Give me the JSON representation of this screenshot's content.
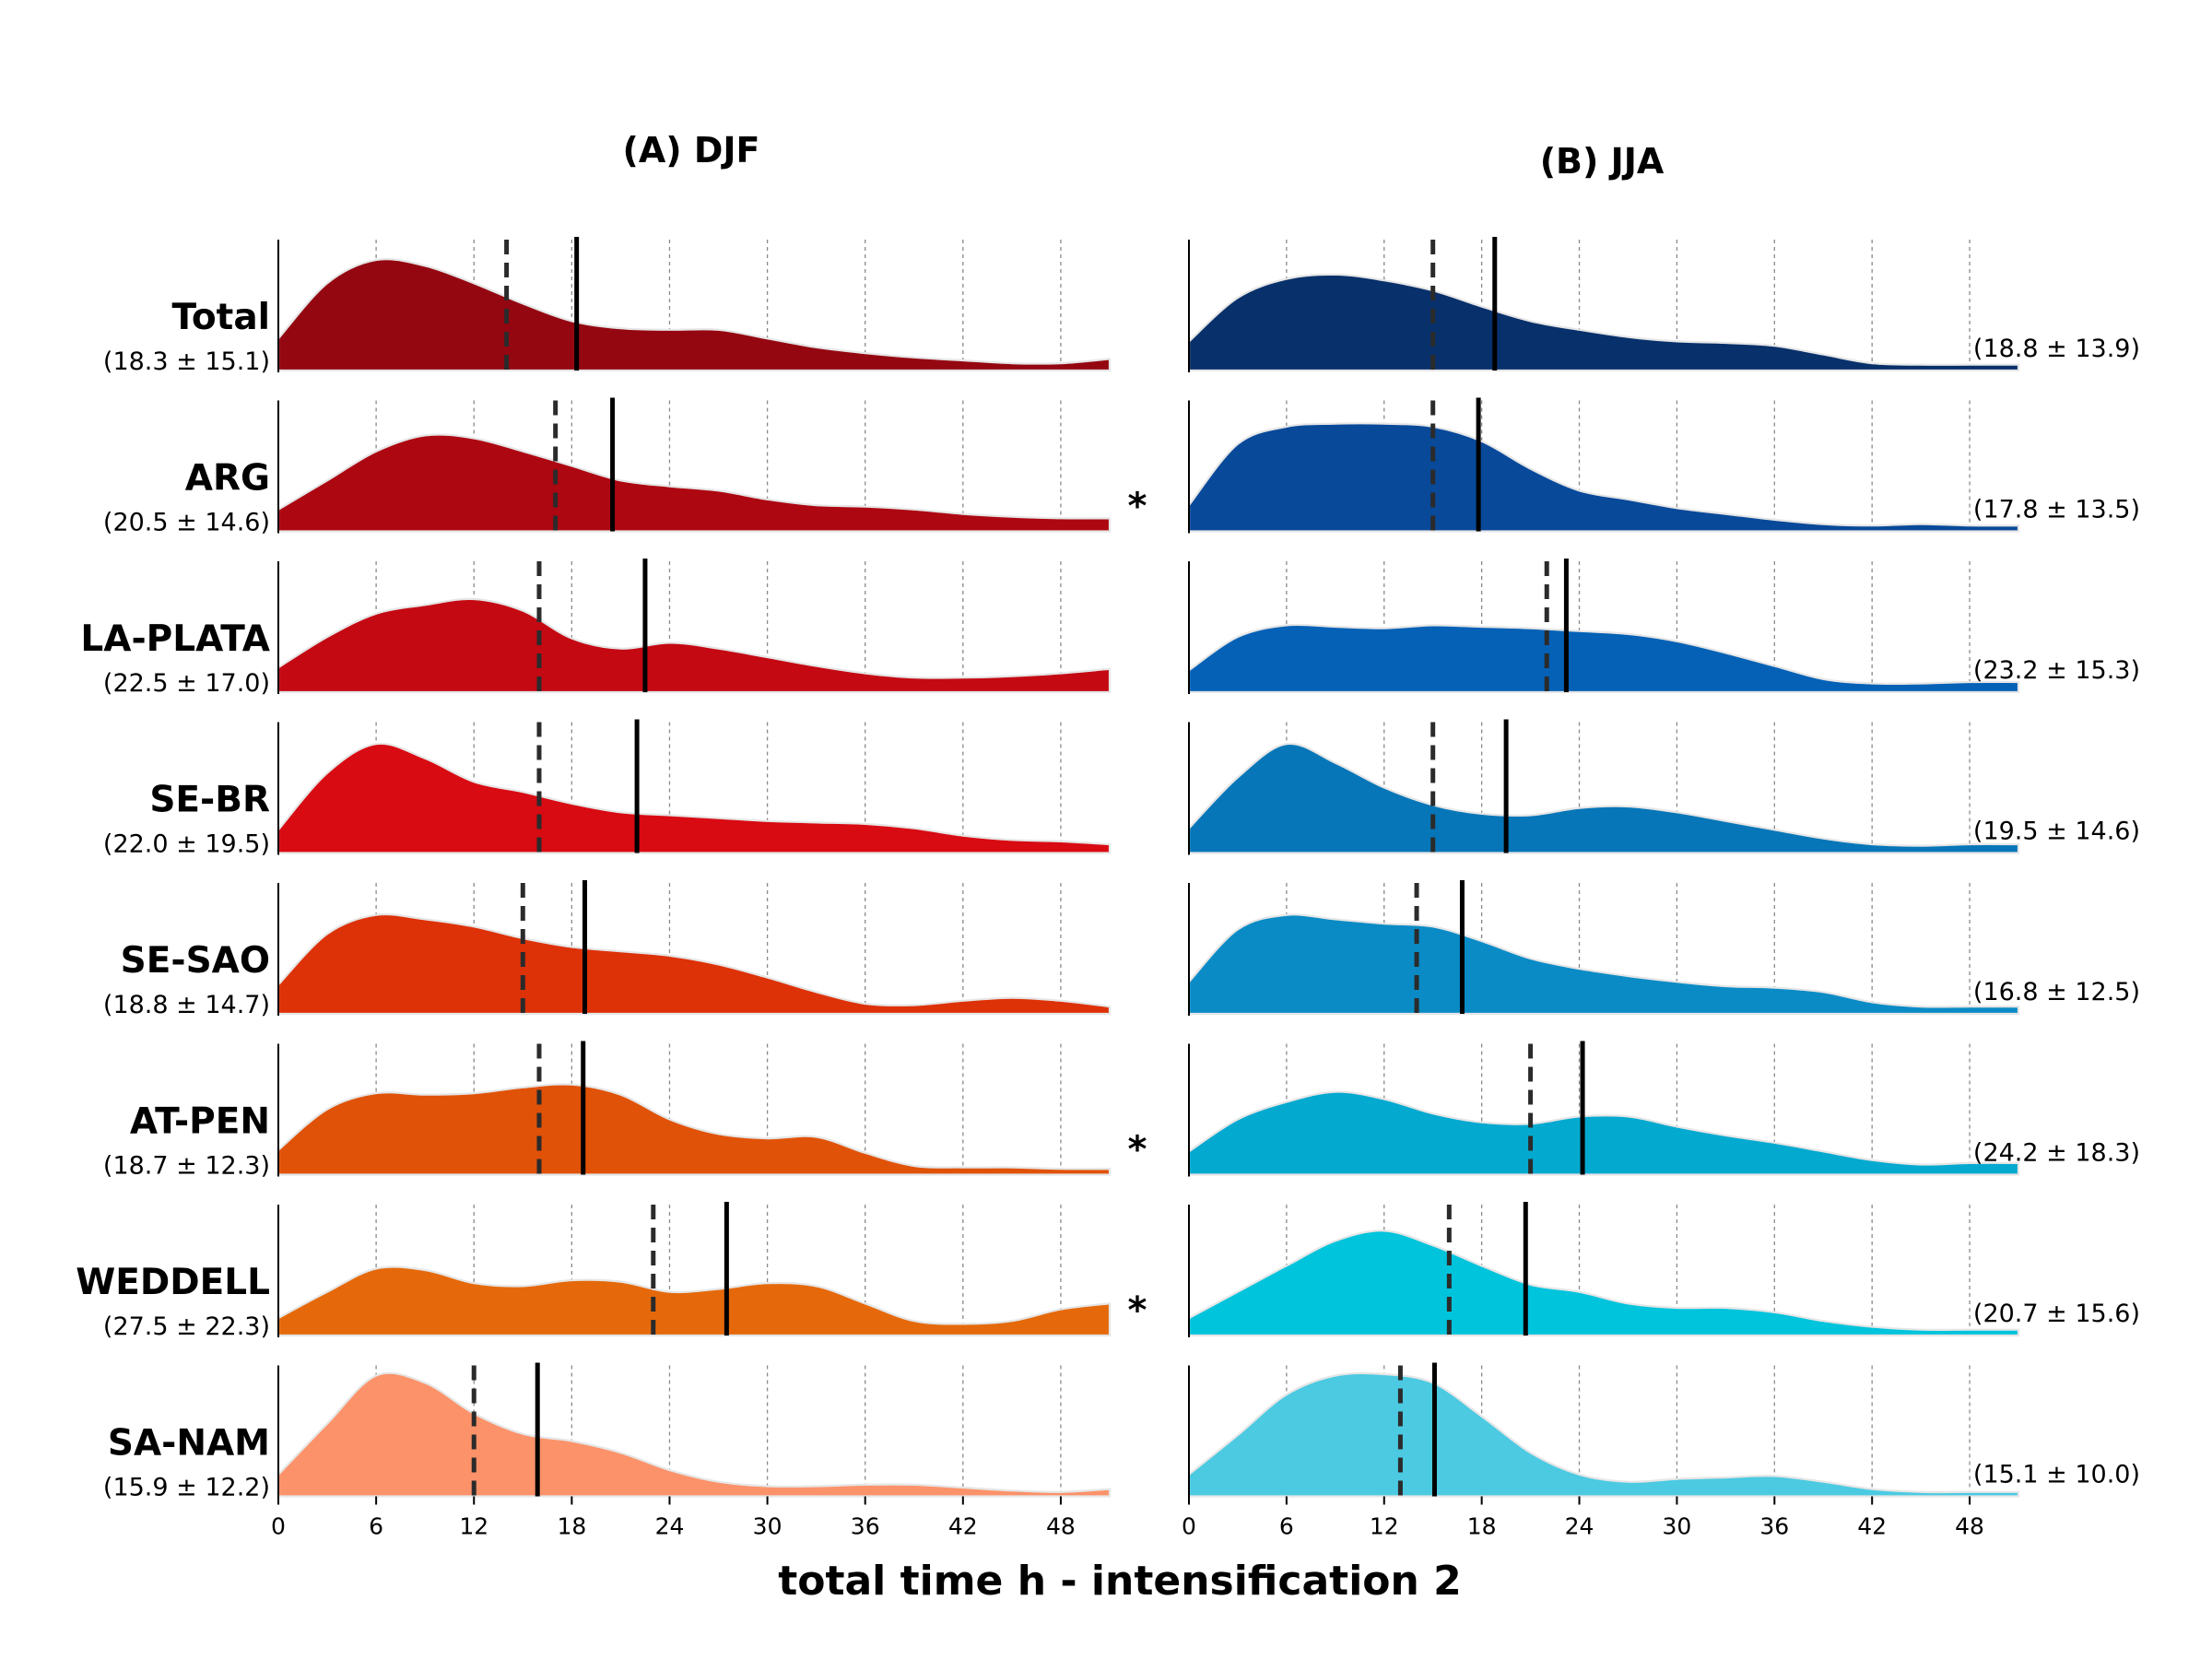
{
  "figure": {
    "xlabel": "total time h - intensification 2"
  },
  "chart_data": {
    "type": "area",
    "x_range": [
      0,
      51
    ],
    "x_ticks": [
      0,
      6,
      12,
      18,
      24,
      30,
      36,
      42,
      48
    ],
    "grid": "vertical dashed at ticks",
    "regions": [
      "Total",
      "ARG",
      "LA-PLATA",
      "SE-BR",
      "SE-SAO",
      "AT-PEN",
      "WEDDELL",
      "SA-NAM"
    ],
    "significance_marks": [
      "",
      "*",
      "",
      "",
      "",
      "*",
      "*",
      ""
    ],
    "panels": [
      {
        "title": "(A) DJF",
        "series": [
          {
            "region": "Total",
            "stats": "(18.3 ± 15.1)",
            "mean": 18.3,
            "median": 14,
            "color": "#940711",
            "x": [
              0,
              3,
              6,
              9,
              12,
              15,
              18,
              21,
              24,
              27,
              30,
              33,
              36,
              39,
              42,
              45,
              48,
              51
            ],
            "density": [
              0.22,
              0.6,
              0.76,
              0.72,
              0.6,
              0.46,
              0.34,
              0.29,
              0.28,
              0.28,
              0.22,
              0.16,
              0.12,
              0.09,
              0.07,
              0.05,
              0.05,
              0.08
            ]
          },
          {
            "region": "ARG",
            "stats": "(20.5 ± 14.6)",
            "mean": 20.5,
            "median": 17,
            "color": "#ad0712",
            "x": [
              0,
              3,
              6,
              9,
              12,
              15,
              18,
              21,
              24,
              27,
              30,
              33,
              36,
              39,
              42,
              45,
              48,
              51
            ],
            "density": [
              0.15,
              0.35,
              0.55,
              0.66,
              0.64,
              0.55,
              0.45,
              0.35,
              0.31,
              0.28,
              0.22,
              0.18,
              0.17,
              0.15,
              0.12,
              0.1,
              0.09,
              0.09
            ]
          },
          {
            "region": "LA-PLATA",
            "stats": "(22.5 ± 17.0)",
            "mean": 22.5,
            "median": 16,
            "color": "#c40913",
            "x": [
              0,
              3,
              6,
              9,
              12,
              15,
              18,
              21,
              24,
              27,
              30,
              33,
              36,
              39,
              42,
              45,
              48,
              51
            ],
            "density": [
              0.17,
              0.38,
              0.54,
              0.6,
              0.64,
              0.56,
              0.37,
              0.3,
              0.34,
              0.3,
              0.24,
              0.18,
              0.13,
              0.1,
              0.1,
              0.11,
              0.13,
              0.16
            ]
          },
          {
            "region": "SE-BR",
            "stats": "(22.0 ± 19.5)",
            "mean": 22.0,
            "median": 16,
            "color": "#d80a12",
            "x": [
              0,
              3,
              6,
              9,
              12,
              15,
              18,
              21,
              24,
              27,
              30,
              33,
              36,
              39,
              42,
              45,
              48,
              51
            ],
            "density": [
              0.16,
              0.55,
              0.75,
              0.65,
              0.49,
              0.42,
              0.34,
              0.28,
              0.26,
              0.24,
              0.22,
              0.21,
              0.2,
              0.17,
              0.12,
              0.09,
              0.08,
              0.06
            ]
          },
          {
            "region": "SE-SAO",
            "stats": "(18.8 ± 14.7)",
            "mean": 18.8,
            "median": 15,
            "color": "#dd3108",
            "x": [
              0,
              3,
              6,
              9,
              12,
              15,
              18,
              21,
              24,
              27,
              30,
              33,
              36,
              39,
              42,
              45,
              48,
              51
            ],
            "density": [
              0.2,
              0.55,
              0.68,
              0.65,
              0.6,
              0.52,
              0.46,
              0.43,
              0.4,
              0.34,
              0.25,
              0.15,
              0.07,
              0.06,
              0.09,
              0.11,
              0.09,
              0.05
            ]
          },
          {
            "region": "AT-PEN",
            "stats": "(18.7 ± 12.3)",
            "mean": 18.7,
            "median": 16,
            "color": "#e05208",
            "x": [
              0,
              3,
              6,
              9,
              12,
              15,
              18,
              21,
              24,
              27,
              30,
              33,
              36,
              39,
              42,
              45,
              48,
              51
            ],
            "density": [
              0.17,
              0.45,
              0.56,
              0.55,
              0.56,
              0.6,
              0.62,
              0.55,
              0.38,
              0.28,
              0.25,
              0.26,
              0.15,
              0.06,
              0.05,
              0.05,
              0.04,
              0.04
            ]
          },
          {
            "region": "WEDDELL",
            "stats": "(27.5 ± 22.3)",
            "mean": 27.5,
            "median": 23,
            "color": "#e5690a",
            "x": [
              0,
              3,
              6,
              9,
              12,
              15,
              18,
              21,
              24,
              27,
              30,
              33,
              36,
              39,
              42,
              45,
              48,
              51
            ],
            "density": [
              0.12,
              0.3,
              0.46,
              0.45,
              0.36,
              0.34,
              0.38,
              0.37,
              0.3,
              0.32,
              0.36,
              0.34,
              0.22,
              0.1,
              0.08,
              0.1,
              0.18,
              0.22
            ]
          },
          {
            "region": "SA-NAM",
            "stats": "(15.9 ± 12.2)",
            "mean": 15.9,
            "median": 12,
            "color": "#fc9269",
            "x": [
              0,
              3,
              6,
              9,
              12,
              15,
              18,
              21,
              24,
              27,
              30,
              33,
              36,
              39,
              42,
              45,
              48,
              51
            ],
            "density": [
              0.15,
              0.5,
              0.83,
              0.78,
              0.57,
              0.43,
              0.38,
              0.3,
              0.18,
              0.1,
              0.07,
              0.07,
              0.08,
              0.08,
              0.06,
              0.04,
              0.03,
              0.05
            ]
          }
        ]
      },
      {
        "title": "(B) JJA",
        "series": [
          {
            "region": "Total",
            "stats": "(18.8 ± 13.9)",
            "mean": 18.8,
            "median": 15,
            "color": "#08306b",
            "x": [
              0,
              3,
              6,
              9,
              12,
              15,
              18,
              21,
              24,
              27,
              30,
              33,
              36,
              39,
              42,
              45,
              48,
              51
            ],
            "density": [
              0.2,
              0.5,
              0.63,
              0.66,
              0.62,
              0.55,
              0.44,
              0.34,
              0.28,
              0.23,
              0.2,
              0.19,
              0.17,
              0.11,
              0.05,
              0.04,
              0.04,
              0.04
            ]
          },
          {
            "region": "ARG",
            "stats": "(17.8 ± 13.5)",
            "mean": 17.8,
            "median": 15,
            "color": "#08499a",
            "x": [
              0,
              3,
              6,
              9,
              12,
              15,
              18,
              21,
              24,
              27,
              30,
              33,
              36,
              39,
              42,
              45,
              48,
              51
            ],
            "density": [
              0.18,
              0.6,
              0.72,
              0.74,
              0.74,
              0.72,
              0.62,
              0.43,
              0.28,
              0.22,
              0.16,
              0.12,
              0.08,
              0.05,
              0.04,
              0.05,
              0.04,
              0.04
            ]
          },
          {
            "region": "LA-PLATA",
            "stats": "(23.2 ± 15.3)",
            "mean": 23.2,
            "median": 22,
            "color": "#0461b6",
            "x": [
              0,
              3,
              6,
              9,
              12,
              15,
              18,
              21,
              24,
              27,
              30,
              33,
              36,
              39,
              42,
              45,
              48,
              51
            ],
            "density": [
              0.15,
              0.38,
              0.46,
              0.45,
              0.44,
              0.46,
              0.45,
              0.44,
              0.42,
              0.4,
              0.35,
              0.27,
              0.18,
              0.09,
              0.06,
              0.06,
              0.07,
              0.07
            ]
          },
          {
            "region": "SE-BR",
            "stats": "(19.5 ± 14.6)",
            "mean": 19.5,
            "median": 15,
            "color": "#0676b8",
            "x": [
              0,
              3,
              6,
              9,
              12,
              15,
              18,
              21,
              24,
              27,
              30,
              33,
              36,
              39,
              42,
              45,
              48,
              51
            ],
            "density": [
              0.17,
              0.52,
              0.75,
              0.62,
              0.45,
              0.33,
              0.27,
              0.26,
              0.31,
              0.32,
              0.28,
              0.22,
              0.16,
              0.1,
              0.06,
              0.05,
              0.06,
              0.06
            ]
          },
          {
            "region": "SE-SAO",
            "stats": "(16.8 ± 12.5)",
            "mean": 16.8,
            "median": 14,
            "color": "#0a8bc6",
            "x": [
              0,
              3,
              6,
              9,
              12,
              15,
              18,
              21,
              24,
              27,
              30,
              33,
              36,
              39,
              42,
              45,
              48,
              51
            ],
            "density": [
              0.22,
              0.58,
              0.68,
              0.65,
              0.62,
              0.6,
              0.5,
              0.38,
              0.31,
              0.26,
              0.22,
              0.19,
              0.18,
              0.15,
              0.08,
              0.05,
              0.05,
              0.05
            ]
          },
          {
            "region": "AT-PEN",
            "stats": "(24.2 ± 18.3)",
            "mean": 24.2,
            "median": 21,
            "color": "#04a9d0",
            "x": [
              0,
              3,
              6,
              9,
              12,
              15,
              18,
              21,
              24,
              27,
              30,
              33,
              36,
              39,
              42,
              45,
              48,
              51
            ],
            "density": [
              0.16,
              0.38,
              0.5,
              0.57,
              0.52,
              0.42,
              0.36,
              0.35,
              0.4,
              0.4,
              0.33,
              0.27,
              0.22,
              0.16,
              0.1,
              0.07,
              0.08,
              0.08
            ]
          },
          {
            "region": "WEDDELL",
            "stats": "(20.7 ± 15.6)",
            "mean": 20.7,
            "median": 16,
            "color": "#00c3dc",
            "x": [
              0,
              3,
              6,
              9,
              12,
              15,
              18,
              21,
              24,
              27,
              30,
              33,
              36,
              39,
              42,
              45,
              48,
              51
            ],
            "density": [
              0.12,
              0.3,
              0.48,
              0.65,
              0.72,
              0.62,
              0.48,
              0.35,
              0.3,
              0.22,
              0.19,
              0.19,
              0.16,
              0.1,
              0.06,
              0.04,
              0.04,
              0.04
            ]
          },
          {
            "region": "SA-NAM",
            "stats": "(15.1 ± 10.0)",
            "mean": 15.1,
            "median": 13,
            "color": "#4bcae2",
            "x": [
              0,
              3,
              6,
              9,
              12,
              15,
              18,
              21,
              24,
              27,
              30,
              33,
              36,
              39,
              42,
              45,
              48,
              51
            ],
            "density": [
              0.15,
              0.42,
              0.7,
              0.83,
              0.84,
              0.78,
              0.55,
              0.3,
              0.15,
              0.1,
              0.12,
              0.13,
              0.14,
              0.1,
              0.05,
              0.03,
              0.03,
              0.03
            ]
          }
        ]
      }
    ]
  }
}
